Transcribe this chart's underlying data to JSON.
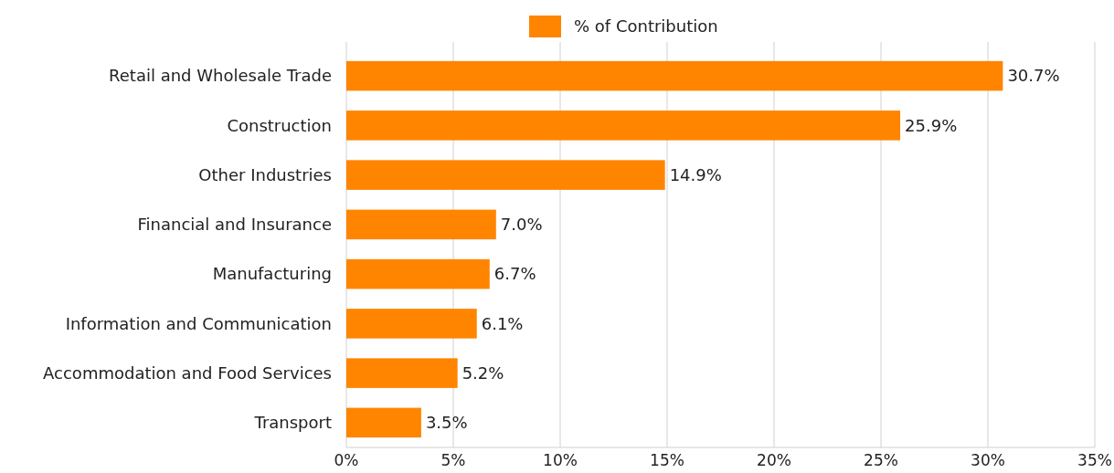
{
  "chart_data": {
    "type": "bar",
    "orientation": "horizontal",
    "categories": [
      "Retail and Wholesale Trade",
      "Construction",
      "Other Industries",
      "Financial and Insurance",
      "Manufacturing",
      "Information and Communication",
      "Accommodation and Food Services",
      "Transport"
    ],
    "series": [
      {
        "name": "% of Contribution",
        "color": "#ff8500",
        "values": [
          30.7,
          25.9,
          14.9,
          7.0,
          6.7,
          6.1,
          5.2,
          3.5
        ],
        "value_labels": [
          "30.7%",
          "25.9%",
          "14.9%",
          "7.0%",
          "6.7%",
          "6.1%",
          "5.2%",
          "3.5%"
        ]
      }
    ],
    "xlim": [
      0,
      35
    ],
    "xticks": [
      {
        "value": 0,
        "label": "0%"
      },
      {
        "value": 5,
        "label": "5%"
      },
      {
        "value": 10,
        "label": "10%"
      },
      {
        "value": 15,
        "label": "15%"
      },
      {
        "value": 20,
        "label": "20%"
      },
      {
        "value": 25,
        "label": "25%"
      },
      {
        "value": 30,
        "label": "30%"
      },
      {
        "value": 35,
        "label": "35%"
      }
    ],
    "grid": "x",
    "legend": "top"
  }
}
